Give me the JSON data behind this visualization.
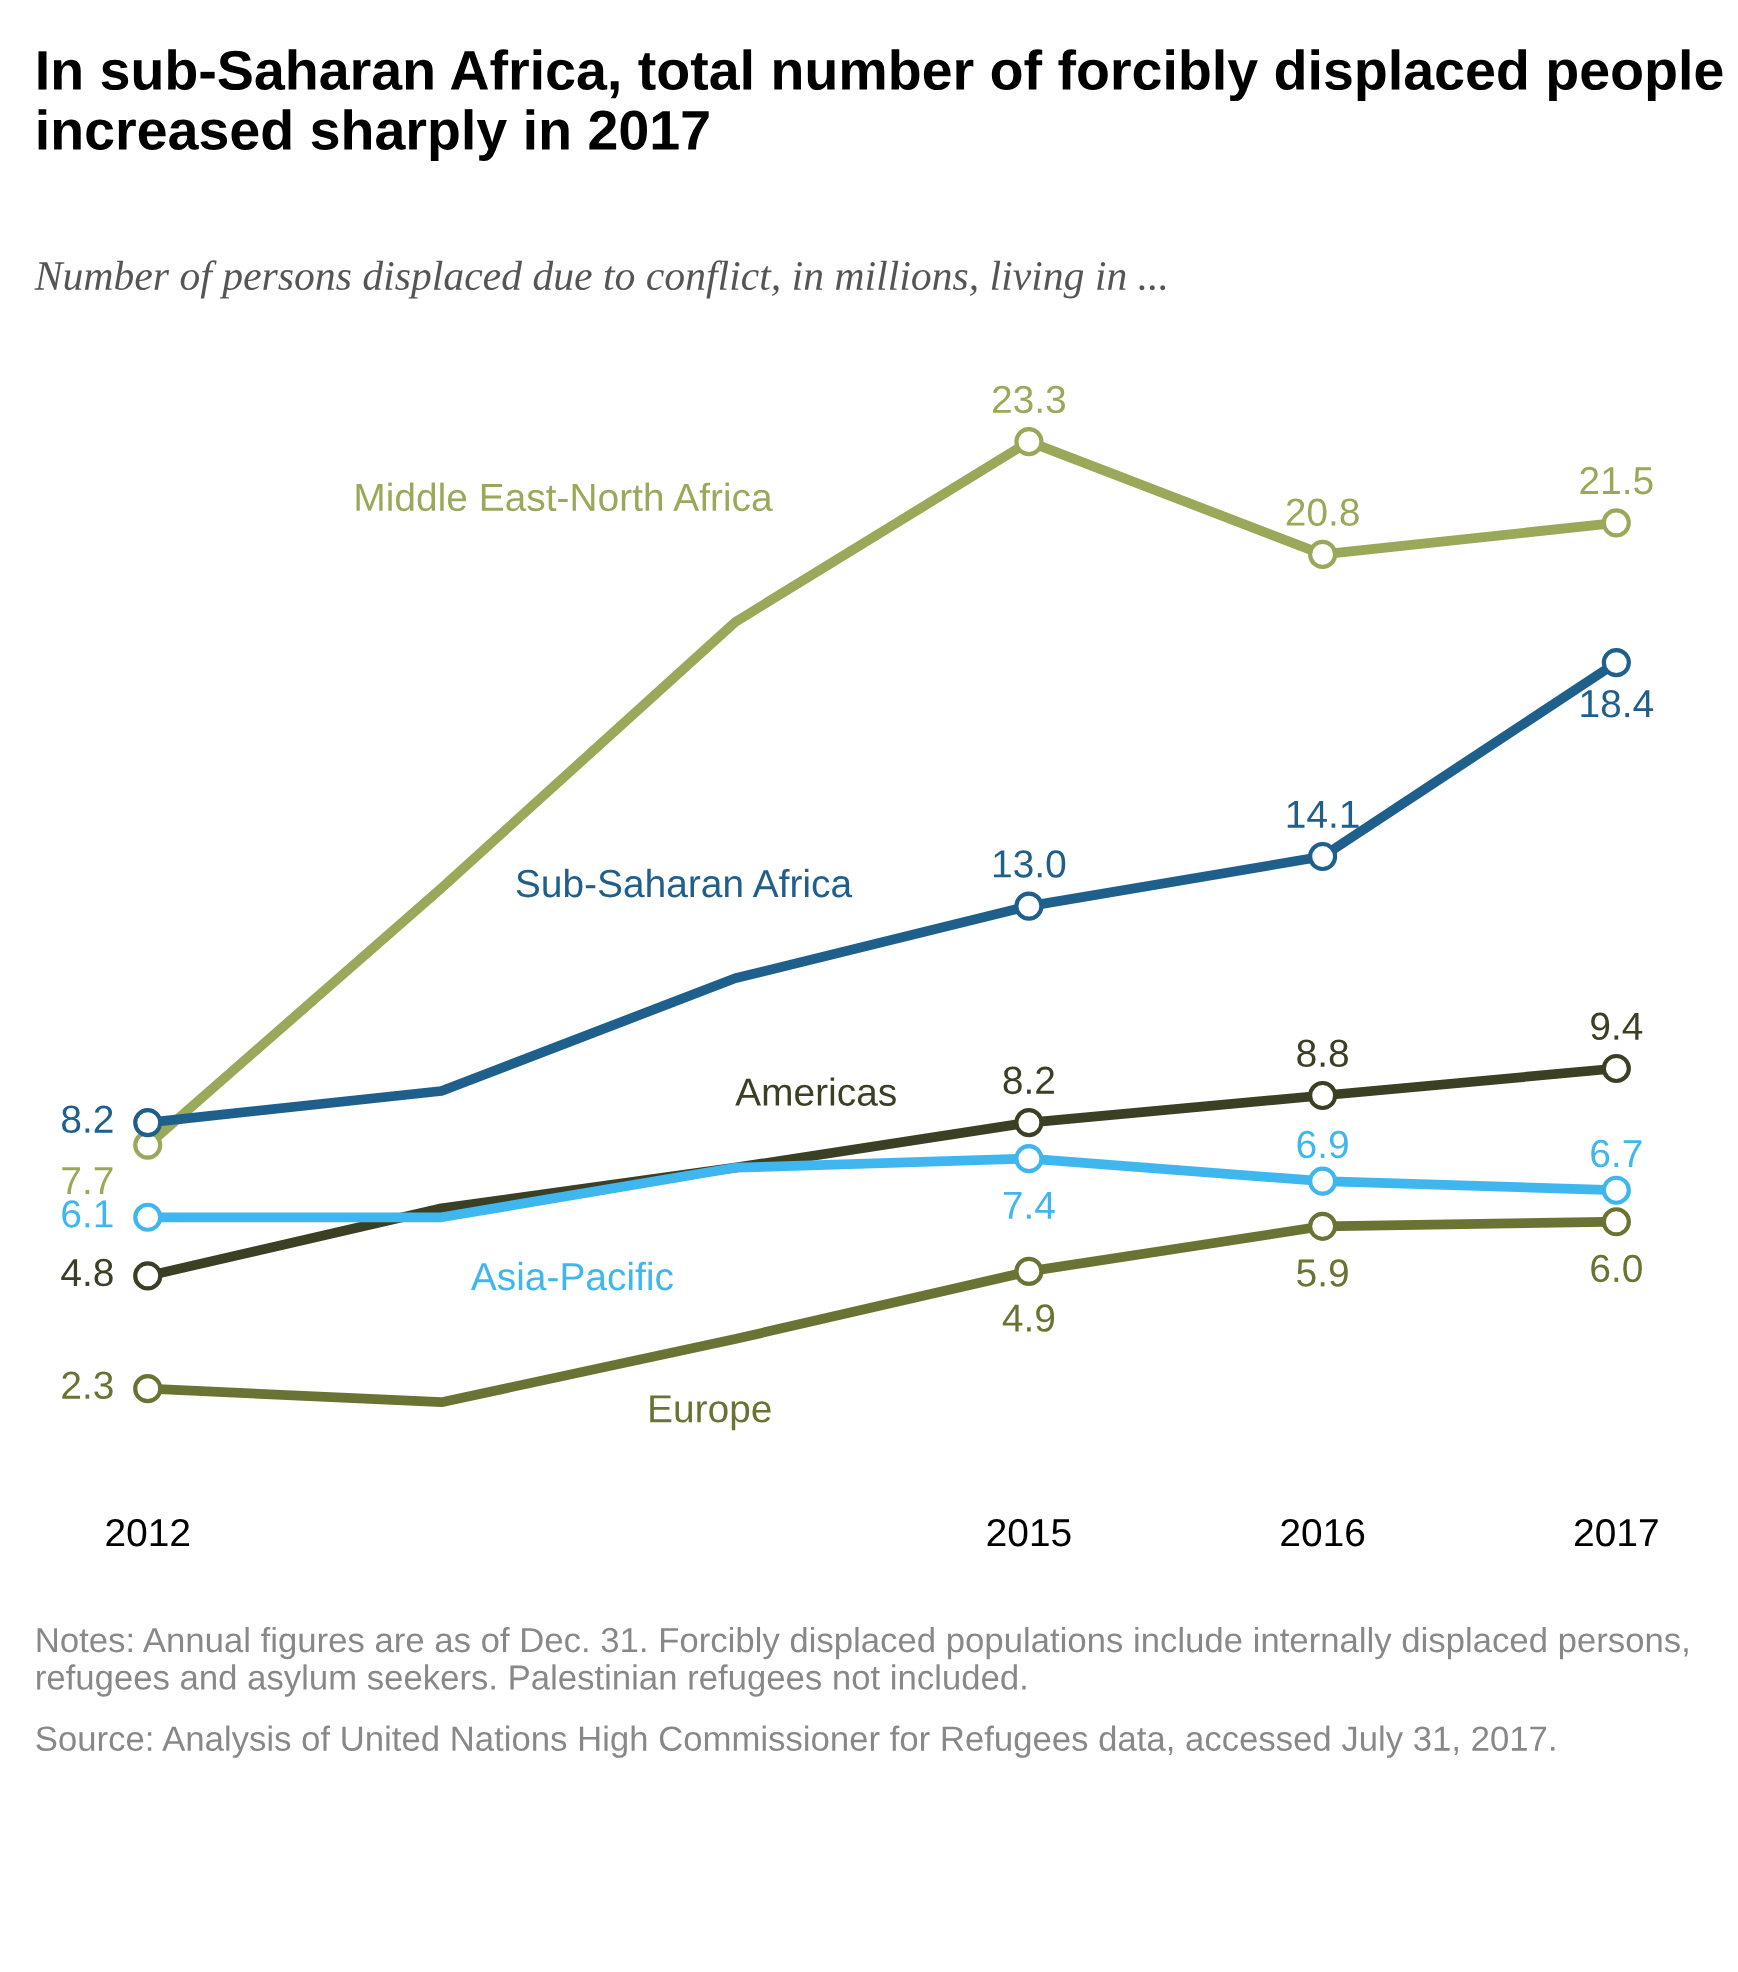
{
  "chart_data": {
    "type": "line",
    "title": "In sub-Saharan Africa, total number of forcibly displaced people increased sharply in 2017",
    "subtitle": "Number of persons displaced due to conflict, in millions, living in ...",
    "x": [
      2012,
      2013,
      2014,
      2015,
      2016,
      2017
    ],
    "xlim": [
      2012,
      2017
    ],
    "xticks": [
      2012,
      2015,
      2016,
      2017
    ],
    "tick_labels": "x",
    "marker": "circle",
    "grid": false,
    "legend": false,
    "series": [
      {
        "name": "Middle East-North Africa",
        "color": "#9aa85a",
        "values": [
          7.7,
          13.4,
          19.3,
          23.3,
          20.8,
          21.5
        ],
        "value_labels": [
          "7.7",
          null,
          null,
          "23.3",
          "20.8",
          "21.5"
        ]
      },
      {
        "name": "Sub-Saharan Africa",
        "color": "#1f5f8b",
        "values": [
          8.2,
          8.9,
          11.4,
          13.0,
          14.1,
          18.4
        ],
        "value_labels": [
          "8.2",
          null,
          null,
          "13.0",
          "14.1",
          "18.4"
        ]
      },
      {
        "name": "Americas",
        "color": "#3b3f24",
        "values": [
          4.8,
          6.3,
          7.2,
          8.2,
          8.8,
          9.4
        ],
        "value_labels": [
          "4.8",
          null,
          null,
          "8.2",
          "8.8",
          "9.4"
        ]
      },
      {
        "name": "Asia-Pacific",
        "color": "#3fb6ee",
        "values": [
          6.1,
          6.1,
          7.2,
          7.4,
          6.9,
          6.7
        ],
        "value_labels": [
          "6.1",
          null,
          null,
          "7.4",
          "6.9",
          "6.7"
        ]
      },
      {
        "name": "Europe",
        "color": "#6b7334",
        "values": [
          2.3,
          2.0,
          3.4,
          4.9,
          5.9,
          6.0
        ],
        "value_labels": [
          "2.3",
          null,
          null,
          "4.9",
          "5.9",
          "6.0"
        ]
      }
    ],
    "annotations": [
      "Notes: Annual figures are as of Dec. 31. Forcibly displaced populations include internally displaced persons, refugees and asylum seekers. Palestinian refugees not included.",
      "Source: Analysis of United Nations High Commissioner for Refugees data, accessed July 31, 2017."
    ]
  }
}
